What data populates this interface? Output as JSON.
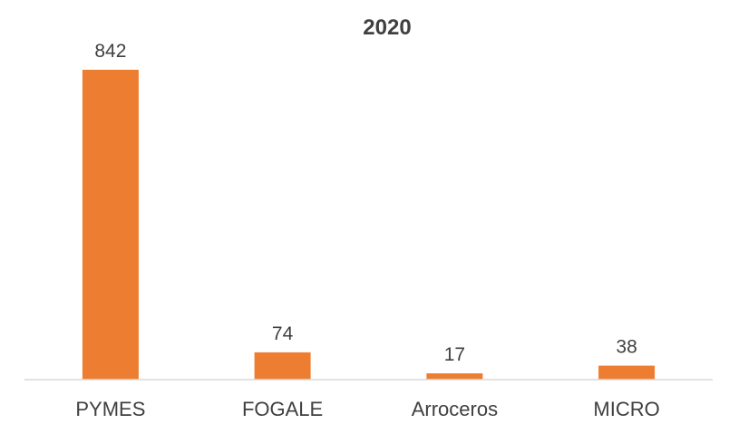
{
  "chart_data": {
    "type": "bar",
    "title": "2020",
    "categories": [
      "PYMES",
      "FOGALE",
      "Arroceros",
      "MICRO"
    ],
    "values": [
      842,
      74,
      17,
      38
    ],
    "data_labels": [
      "842",
      "74",
      "17",
      "38"
    ],
    "xlabel": "",
    "ylabel": "",
    "ylim": [
      0,
      900
    ],
    "grid": false,
    "legend": "none",
    "colors": {
      "bar": "#ED7D31",
      "axis": "#D9D9D9",
      "text": "#404040"
    }
  }
}
